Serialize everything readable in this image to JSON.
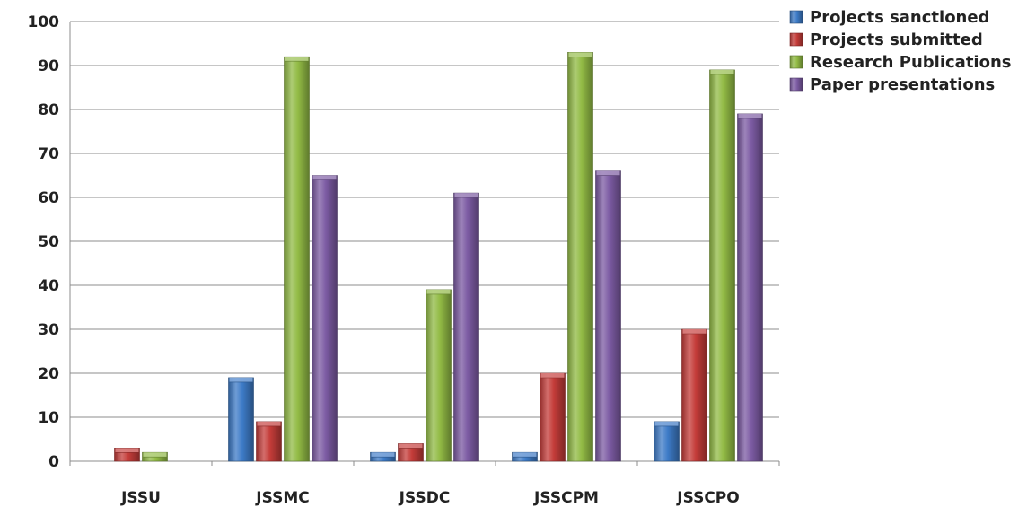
{
  "chart_data": {
    "type": "bar",
    "bar_style": "3d",
    "categories": [
      "JSSU",
      "JSSMC",
      "JSSDC",
      "JSSCPM",
      "JSSCPO"
    ],
    "series": [
      {
        "name": "Projects sanctioned",
        "color": "#3d7bc7",
        "values": [
          0,
          19,
          2,
          2,
          9
        ]
      },
      {
        "name": "Projects submitted",
        "color": "#c43c39",
        "values": [
          3,
          9,
          4,
          20,
          30
        ]
      },
      {
        "name": "Research Publications",
        "color": "#92bb45",
        "values": [
          2,
          92,
          39,
          93,
          89
        ]
      },
      {
        "name": "Paper presentations",
        "color": "#7c5ba3",
        "values": [
          0,
          65,
          61,
          66,
          79
        ]
      }
    ],
    "title": "",
    "xlabel": "",
    "ylabel": "",
    "ylim": [
      0,
      100
    ],
    "yticks": [
      0,
      10,
      20,
      30,
      40,
      50,
      60,
      70,
      80,
      90,
      100
    ],
    "grid": "horizontal",
    "legend": "top-right"
  }
}
